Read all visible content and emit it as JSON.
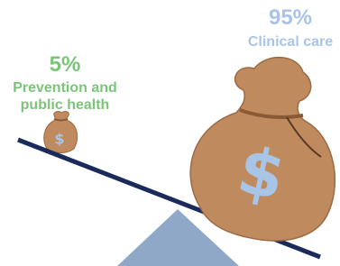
{
  "items": [
    {
      "value_label": "5%",
      "label": "Prevention and public health",
      "symbol": "$"
    },
    {
      "value_label": "95%",
      "label": "Clinical care",
      "symbol": "$"
    }
  ]
}
